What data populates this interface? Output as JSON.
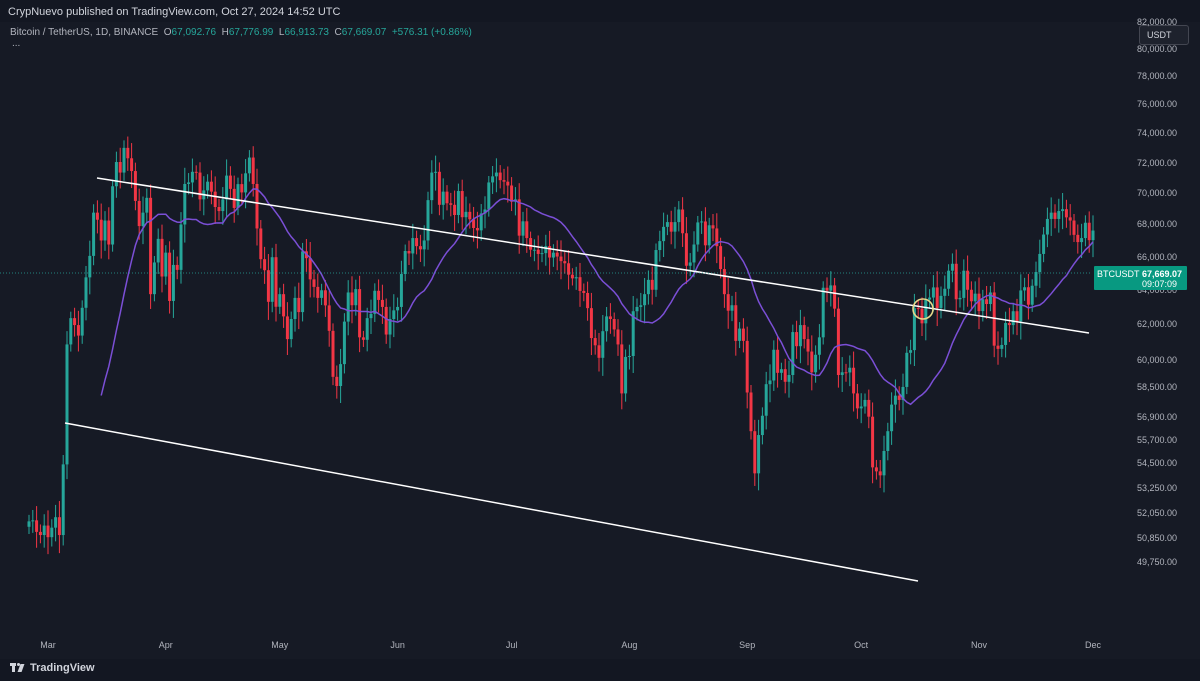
{
  "header": {
    "text": "CrypNuevo published on TradingView.com, Oct 27, 2024 14:52 UTC"
  },
  "symbol": {
    "name": "Bitcoin / TetherUS, 1D, BINANCE",
    "o_label": "O",
    "o": "67,092.76",
    "h_label": "H",
    "h": "67,776.99",
    "l_label": "L",
    "l": "66,913.73",
    "c_label": "C",
    "c": "67,669.07",
    "change": "+576.31 (+0.86%)",
    "more": "..."
  },
  "currency_button": "USDT",
  "price_badge": {
    "symbol": "BTCUSDT",
    "price": "67,669.07",
    "countdown": "09:07:09"
  },
  "footer": {
    "brand": "TradingView"
  },
  "colors": {
    "up": "#26a69a",
    "down": "#f23645",
    "ma": "#7b4fd6",
    "channel": "#ffffff",
    "background": "#161a25",
    "highlight_circle": "#e8d88a"
  },
  "chart_data": {
    "type": "candlestick",
    "symbol": "BTCUSDT",
    "timeframe": "1D",
    "y_axis": {
      "scale": "log",
      "ticks": [
        "82,000.00",
        "80,000.00",
        "78,000.00",
        "76,000.00",
        "74,000.00",
        "72,000.00",
        "70,000.00",
        "68,000.00",
        "66,000.00",
        "64,000.00",
        "62,000.00",
        "60,000.00",
        "58,500.00",
        "56,900.00",
        "55,700.00",
        "54,500.00",
        "53,250.00",
        "52,050.00",
        "50,850.00",
        "49,750.00"
      ],
      "range": [
        48900,
        84000
      ]
    },
    "x_axis": {
      "ticks": [
        "Mar",
        "Apr",
        "May",
        "Jun",
        "Jul",
        "Aug",
        "Sep",
        "Oct",
        "Nov",
        "Dec"
      ],
      "start_date": "2024-02-25",
      "end_date": "2024-12-10"
    },
    "last_price": 67669.07,
    "candles_close": [
      51700,
      51750,
      51200,
      51050,
      51500,
      50950,
      51400,
      51900,
      51050,
      54500,
      60900,
      62400,
      62000,
      61400,
      63000,
      64800,
      66100,
      68800,
      68350,
      67050,
      68300,
      66800,
      70500,
      72100,
      71400,
      73050,
      72350,
      71500,
      69550,
      67950,
      68800,
      69750,
      63800,
      65700,
      67150,
      64850,
      66300,
      63400,
      65550,
      65250,
      68050,
      70650,
      70750,
      71450,
      71400,
      69650,
      70230,
      70800,
      70150,
      69160,
      68900,
      69650,
      71200,
      70330,
      69100,
      70640,
      70100,
      71350,
      72400,
      70650,
      67800,
      65900,
      65230,
      63350,
      66020,
      63060,
      63800,
      62500,
      61200,
      62350,
      63580,
      62750,
      66380,
      65960,
      64680,
      64230,
      63580,
      64030,
      63140,
      61670,
      59100,
      58600,
      59800,
      62200,
      63900,
      63150,
      64100,
      61300,
      61160,
      62400,
      62650,
      64000,
      63460,
      63050,
      61460,
      62350,
      62850,
      63050,
      65000,
      66400,
      66250,
      67200,
      66700,
      66500,
      67050,
      69600,
      71400,
      71450,
      69300,
      70150,
      69400,
      69300,
      68650,
      70190,
      68510,
      68850,
      68380,
      67830,
      67680,
      68750,
      69000,
      70750,
      71150,
      71400,
      70900,
      70800,
      70550,
      69500,
      69650,
      67350,
      68250,
      67200,
      66480,
      66480,
      66220,
      66270,
      66700,
      66000,
      66300,
      66060,
      65780,
      65650,
      64960,
      64740,
      64810,
      63990,
      63870,
      62980,
      61260,
      60850,
      60150,
      61650,
      62500,
      62350,
      61750,
      60900,
      58200,
      60200,
      60250,
      62800,
      63050,
      63150,
      63800,
      64650,
      64060,
      66460,
      67010,
      67900,
      68200,
      67600,
      68200,
      69000,
      67500,
      65500,
      65700,
      66800,
      68180,
      68240,
      66750,
      68000,
      67800,
      66700,
      65300,
      63800,
      62830,
      63150,
      61100,
      61800,
      61100,
      58250,
      56200,
      54050,
      56000,
      57010,
      58700,
      58900,
      60600,
      59320,
      59520,
      58830,
      59200,
      61600,
      60800,
      62000,
      61200,
      60500,
      59350,
      60320,
      61300,
      64180,
      64010,
      64320,
      62950,
      59200,
      59350,
      59340,
      59600,
      58200,
      57400,
      57500,
      57850,
      56960,
      54350,
      54150,
      53950,
      55180,
      56200,
      57600,
      58080,
      57850,
      58550,
      60430,
      60580,
      62980,
      62950,
      62100,
      63480,
      63600,
      64200,
      62990,
      63700,
      64120,
      65200,
      65620,
      63500,
      63580,
      65200,
      64060,
      63380,
      63830,
      62810,
      63500,
      63220,
      63900,
      60830,
      60650,
      60870,
      62120,
      62000,
      62800,
      62210,
      64020,
      64210,
      63180,
      64300,
      65120,
      66220,
      67420,
      68400,
      68800,
      68400,
      68900,
      69020,
      68500,
      68300,
      67400,
      66950,
      67200,
      68160,
      67070,
      67670
    ]
  }
}
